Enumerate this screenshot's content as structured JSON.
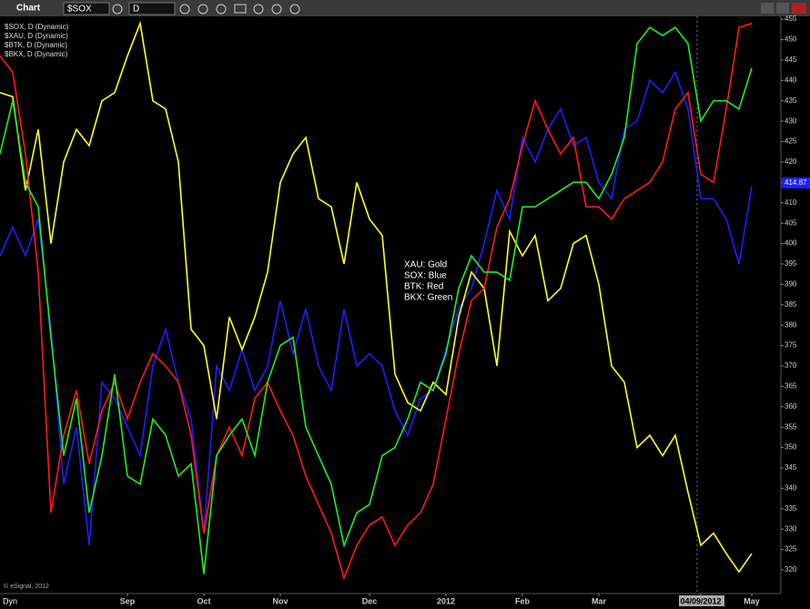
{
  "toolbar": {
    "window_title": "Chart",
    "symbol": "$SOX",
    "interval": "D"
  },
  "chart_data": {
    "type": "line",
    "categories": [
      null,
      null,
      null,
      null,
      null,
      null,
      null,
      null,
      null,
      null,
      "Sep",
      null,
      null,
      null,
      null,
      null,
      "Oct",
      null,
      null,
      null,
      null,
      null,
      "Nov",
      null,
      null,
      null,
      null,
      null,
      null,
      "Dec",
      null,
      null,
      null,
      null,
      null,
      "2012",
      null,
      null,
      null,
      null,
      null,
      "Feb",
      null,
      null,
      null,
      null,
      null,
      "Mar",
      null,
      null,
      null,
      null,
      null,
      null,
      null,
      "04/09/2012",
      null,
      null,
      null,
      "May"
    ],
    "series": [
      {
        "name": "$SOX, D (Dynamic)",
        "color": "#1f1fff",
        "values": [
          397,
          404,
          397,
          406,
          379,
          341,
          355,
          326,
          366,
          362,
          355,
          348,
          370,
          379,
          366,
          357,
          329,
          370,
          364,
          374,
          364,
          370,
          386,
          373,
          384,
          370,
          364,
          384,
          370,
          373,
          370,
          359,
          353,
          362,
          364,
          374,
          384,
          389,
          400,
          413,
          406,
          426,
          420,
          428,
          433,
          424,
          426,
          415,
          411,
          428,
          430,
          440,
          437,
          442,
          433,
          411,
          411,
          406,
          395,
          414
        ]
      },
      {
        "name": "$XAU, D (Dynamic)",
        "color": "#ffff22",
        "values": [
          437,
          436,
          413,
          428,
          400,
          420,
          428,
          424,
          435,
          437,
          446,
          454,
          435,
          433,
          420,
          379,
          375,
          357,
          382,
          374,
          382,
          393,
          415,
          422,
          426,
          411,
          409,
          395,
          415,
          406,
          402,
          368,
          361,
          359,
          366,
          363,
          382,
          393,
          389,
          370,
          403,
          397,
          402,
          386,
          389,
          400,
          402,
          390,
          370,
          366,
          350,
          353,
          348,
          353,
          339,
          326,
          329,
          324,
          319.5,
          324
        ]
      },
      {
        "name": "$BTK, D (Dynamic)",
        "color": "#ff1a1a",
        "values": [
          446,
          442,
          422,
          393,
          334,
          353,
          364,
          346,
          359,
          366,
          357,
          366,
          373,
          370,
          366,
          353,
          329,
          348,
          355,
          348,
          362,
          366,
          359,
          353,
          343,
          336,
          329,
          318,
          326,
          331,
          333,
          326,
          331,
          334,
          341,
          357,
          373,
          386,
          389,
          404,
          411,
          424,
          435,
          428,
          422,
          426,
          409,
          409,
          406,
          411,
          413,
          415,
          420,
          433,
          437,
          417,
          415,
          433,
          453,
          454
        ]
      },
      {
        "name": "$BKX, D (Dynamic)",
        "color": "#22ee22",
        "values": [
          422,
          435,
          415,
          409,
          377,
          348,
          362,
          334,
          348,
          368,
          343,
          341,
          357,
          353,
          343,
          346,
          319,
          348,
          353,
          357,
          348,
          366,
          375,
          377,
          355,
          348,
          341,
          326,
          334,
          336,
          348,
          350,
          357,
          366,
          364,
          373,
          389,
          397,
          393,
          393,
          391,
          409,
          409,
          411,
          413,
          415,
          415,
          411,
          417,
          426,
          449,
          453,
          451,
          453,
          449,
          430,
          435,
          435,
          433,
          443
        ]
      }
    ],
    "annotations": [
      "XAU:  Gold",
      "SOX:  Blue",
      "BTK:  Red",
      "BKX:  Green"
    ],
    "last_value": 414.87,
    "copyright": "© eSignal, 2012",
    "corner_label": "Dyn",
    "ylim": [
      314.2,
      455.7
    ],
    "yticks": [
      320,
      325,
      330,
      335,
      340,
      345,
      350,
      355,
      360,
      365,
      370,
      375,
      380,
      385,
      390,
      395,
      400,
      405,
      410,
      415,
      420,
      425,
      430,
      435,
      440,
      445,
      450,
      455
    ]
  }
}
